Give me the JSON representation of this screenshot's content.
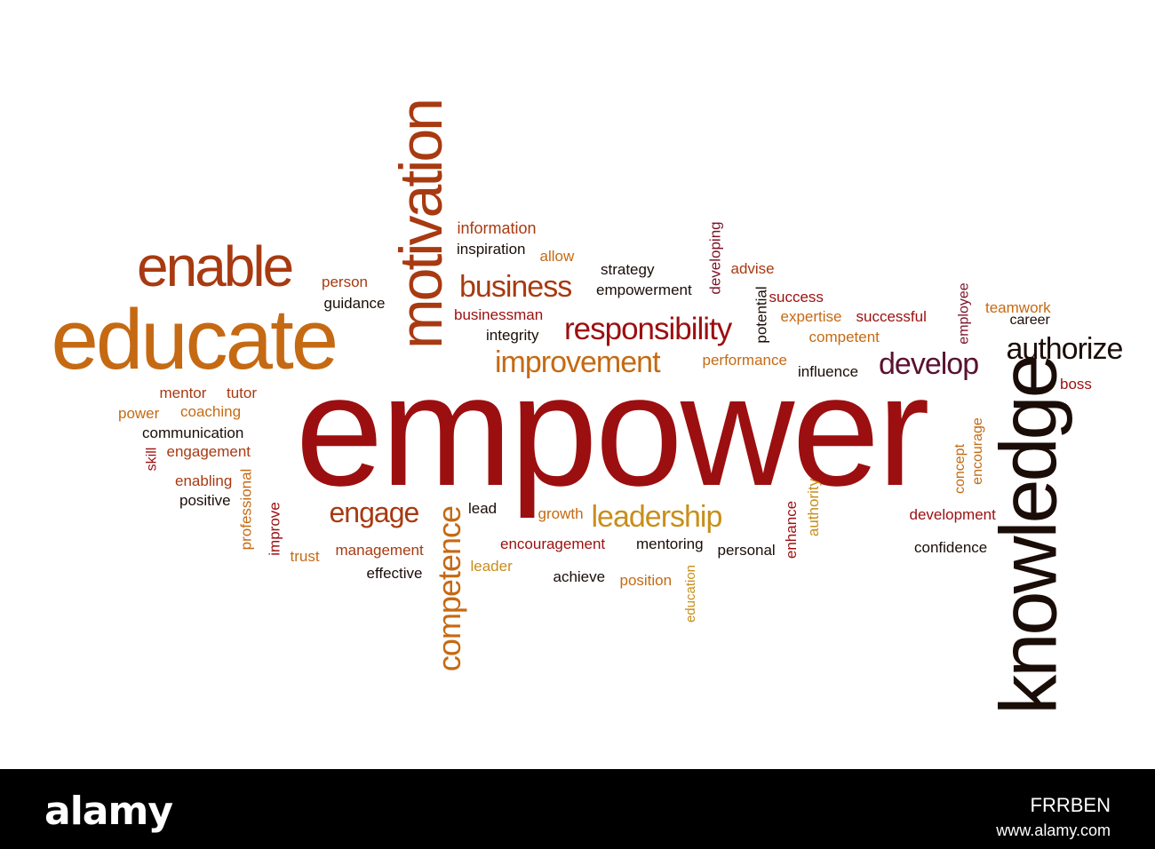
{
  "colors": {
    "dark_red": "#9c0f10",
    "rust": "#a83a11",
    "orange": "#c56a13",
    "gold": "#c88e1c",
    "maroon": "#7a1228",
    "plum": "#5a1230",
    "dark": "#1a0d08",
    "footer_bg": "#000000",
    "footer_text": "#ffffff"
  },
  "words": [
    {
      "text": "empower",
      "color": "#9c0f10",
      "weight": 100
    },
    {
      "text": "educate",
      "color": "#c56a13",
      "weight": 60
    },
    {
      "text": "knowledge",
      "color": "#1a0d08",
      "weight": 55,
      "orientation": "vertical"
    },
    {
      "text": "motivation",
      "color": "#a83a11",
      "weight": 52,
      "orientation": "vertical"
    },
    {
      "text": "enable",
      "color": "#a83a11",
      "weight": 45
    },
    {
      "text": "competence",
      "color": "#c56a13",
      "weight": 30,
      "orientation": "vertical"
    },
    {
      "text": "responsibility",
      "color": "#9c0f10",
      "weight": 28
    },
    {
      "text": "improvement",
      "color": "#c56a13",
      "weight": 28
    },
    {
      "text": "business",
      "color": "#a83a11",
      "weight": 28
    },
    {
      "text": "authorize",
      "color": "#1a0d08",
      "weight": 27
    },
    {
      "text": "develop",
      "color": "#5a1230",
      "weight": 27
    },
    {
      "text": "leadership",
      "color": "#c88e1c",
      "weight": 27
    },
    {
      "text": "engage",
      "color": "#a83a11",
      "weight": 26
    },
    {
      "text": "information",
      "color": "#a83a11",
      "weight": 12
    },
    {
      "text": "inspiration",
      "color": "#1a0d08",
      "weight": 12
    },
    {
      "text": "allow",
      "color": "#c56a13",
      "weight": 12
    },
    {
      "text": "strategy",
      "color": "#1a0d08",
      "weight": 12
    },
    {
      "text": "empowerment",
      "color": "#1a0d08",
      "weight": 12
    },
    {
      "text": "developing",
      "color": "#7a1228",
      "weight": 12,
      "orientation": "vertical"
    },
    {
      "text": "advise",
      "color": "#a83a11",
      "weight": 12
    },
    {
      "text": "potential",
      "color": "#1a0d08",
      "weight": 12,
      "orientation": "vertical"
    },
    {
      "text": "success",
      "color": "#9c0f10",
      "weight": 12
    },
    {
      "text": "employee",
      "color": "#7a1228",
      "weight": 12,
      "orientation": "vertical"
    },
    {
      "text": "teamwork",
      "color": "#c56a13",
      "weight": 12
    },
    {
      "text": "career",
      "color": "#1a0d08",
      "weight": 12
    },
    {
      "text": "expertise",
      "color": "#c56a13",
      "weight": 12
    },
    {
      "text": "successful",
      "color": "#9c0f10",
      "weight": 12
    },
    {
      "text": "competent",
      "color": "#c56a13",
      "weight": 12
    },
    {
      "text": "person",
      "color": "#a83a11",
      "weight": 12
    },
    {
      "text": "guidance",
      "color": "#1a0d08",
      "weight": 12
    },
    {
      "text": "businessman",
      "color": "#9c0f10",
      "weight": 12
    },
    {
      "text": "integrity",
      "color": "#1a0d08",
      "weight": 12
    },
    {
      "text": "performance",
      "color": "#c56a13",
      "weight": 12
    },
    {
      "text": "influence",
      "color": "#1a0d08",
      "weight": 12
    },
    {
      "text": "boss",
      "color": "#9c0f10",
      "weight": 12
    },
    {
      "text": "mentor",
      "color": "#a83a11",
      "weight": 12
    },
    {
      "text": "tutor",
      "color": "#a83a11",
      "weight": 12
    },
    {
      "text": "power",
      "color": "#c56a13",
      "weight": 12
    },
    {
      "text": "coaching",
      "color": "#c56a13",
      "weight": 12
    },
    {
      "text": "communication",
      "color": "#1a0d08",
      "weight": 12
    },
    {
      "text": "skill",
      "color": "#9c0f10",
      "weight": 12,
      "orientation": "vertical"
    },
    {
      "text": "engagement",
      "color": "#a83a11",
      "weight": 12
    },
    {
      "text": "enabling",
      "color": "#a83a11",
      "weight": 12
    },
    {
      "text": "professional",
      "color": "#c56a13",
      "weight": 12,
      "orientation": "vertical"
    },
    {
      "text": "positive",
      "color": "#1a0d08",
      "weight": 12
    },
    {
      "text": "improve",
      "color": "#9c0f10",
      "weight": 12,
      "orientation": "vertical"
    },
    {
      "text": "trust",
      "color": "#c56a13",
      "weight": 12
    },
    {
      "text": "management",
      "color": "#a83a11",
      "weight": 12
    },
    {
      "text": "effective",
      "color": "#1a0d08",
      "weight": 12
    },
    {
      "text": "lead",
      "color": "#1a0d08",
      "weight": 12
    },
    {
      "text": "leader",
      "color": "#c88e1c",
      "weight": 12
    },
    {
      "text": "growth",
      "color": "#c56a13",
      "weight": 12
    },
    {
      "text": "encouragement",
      "color": "#9c0f10",
      "weight": 12
    },
    {
      "text": "mentoring",
      "color": "#1a0d08",
      "weight": 12
    },
    {
      "text": "achieve",
      "color": "#1a0d08",
      "weight": 12
    },
    {
      "text": "position",
      "color": "#c56a13",
      "weight": 12
    },
    {
      "text": "education",
      "color": "#c88e1c",
      "weight": 12,
      "orientation": "vertical"
    },
    {
      "text": "personal",
      "color": "#1a0d08",
      "weight": 12
    },
    {
      "text": "enhance",
      "color": "#9c0f10",
      "weight": 12,
      "orientation": "vertical"
    },
    {
      "text": "authority",
      "color": "#c88e1c",
      "weight": 12,
      "orientation": "vertical"
    },
    {
      "text": "concept",
      "color": "#c56a13",
      "weight": 12,
      "orientation": "vertical"
    },
    {
      "text": "encourage",
      "color": "#c56a13",
      "weight": 12,
      "orientation": "vertical"
    },
    {
      "text": "development",
      "color": "#9c0f10",
      "weight": 12
    },
    {
      "text": "confidence",
      "color": "#1a0d08",
      "weight": 12
    }
  ],
  "footer": {
    "logo": "alamy",
    "stock_id": "FRRBEN",
    "website": "www.alamy.com"
  }
}
